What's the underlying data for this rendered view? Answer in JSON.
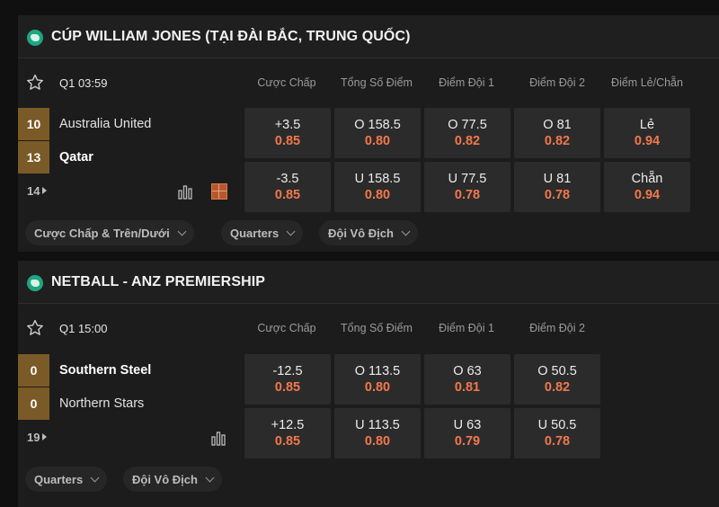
{
  "sections": [
    {
      "title": "CÚP WILLIAM JONES (TẠI ĐÀI BẮC, TRUNG QUỐC)",
      "league_icon": "globe-asia-icon",
      "match": {
        "time": "Q1 03:59",
        "columns": [
          "Cược Chấp",
          "Tổng Số Điểm",
          "Điểm Đội 1",
          "Điểm Đội 2",
          "Điểm Lẻ/Chẵn"
        ],
        "teams": [
          {
            "name": "Australia United",
            "score": "10"
          },
          {
            "name": "Qatar",
            "score": "13"
          }
        ],
        "more_markets": "14",
        "odds_rows": [
          [
            {
              "label": "+3.5",
              "value": "0.85"
            },
            {
              "label": "O 158.5",
              "value": "0.80"
            },
            {
              "label": "O 77.5",
              "value": "0.82"
            },
            {
              "label": "O 81",
              "value": "0.82"
            },
            {
              "label": "Lẻ",
              "value": "0.94"
            }
          ],
          [
            {
              "label": "-3.5",
              "value": "0.85"
            },
            {
              "label": "U 158.5",
              "value": "0.80"
            },
            {
              "label": "U 77.5",
              "value": "0.78"
            },
            {
              "label": "U 81",
              "value": "0.78"
            },
            {
              "label": "Chẵn",
              "value": "0.94"
            }
          ]
        ]
      },
      "chips": [
        "Cược Chấp & Trên/Dưới",
        "Quarters",
        "Đội Vô Địch"
      ]
    },
    {
      "title": "NETBALL - ANZ PREMIERSHIP",
      "league_icon": "globe-oceania-icon",
      "match": {
        "time": "Q1 15:00",
        "columns": [
          "Cược Chấp",
          "Tổng Số Điểm",
          "Điểm Đội 1",
          "Điểm Đội 2"
        ],
        "teams": [
          {
            "name": "Southern Steel",
            "score": "0"
          },
          {
            "name": "Northern Stars",
            "score": "0"
          }
        ],
        "more_markets": "19",
        "odds_rows": [
          [
            {
              "label": "-12.5",
              "value": "0.85"
            },
            {
              "label": "O 113.5",
              "value": "0.80"
            },
            {
              "label": "O 63",
              "value": "0.81"
            },
            {
              "label": "O 50.5",
              "value": "0.82"
            }
          ],
          [
            {
              "label": "+12.5",
              "value": "0.85"
            },
            {
              "label": "U 113.5",
              "value": "0.80"
            },
            {
              "label": "U 63",
              "value": "0.79"
            },
            {
              "label": "U 50.5",
              "value": "0.78"
            }
          ]
        ]
      },
      "chips": [
        "Quarters",
        "Đội Vô Địch"
      ]
    }
  ],
  "colors": {
    "odds_value": "#f2784b",
    "score_box": "#7a5a26",
    "league_icon": "#1fa584"
  }
}
